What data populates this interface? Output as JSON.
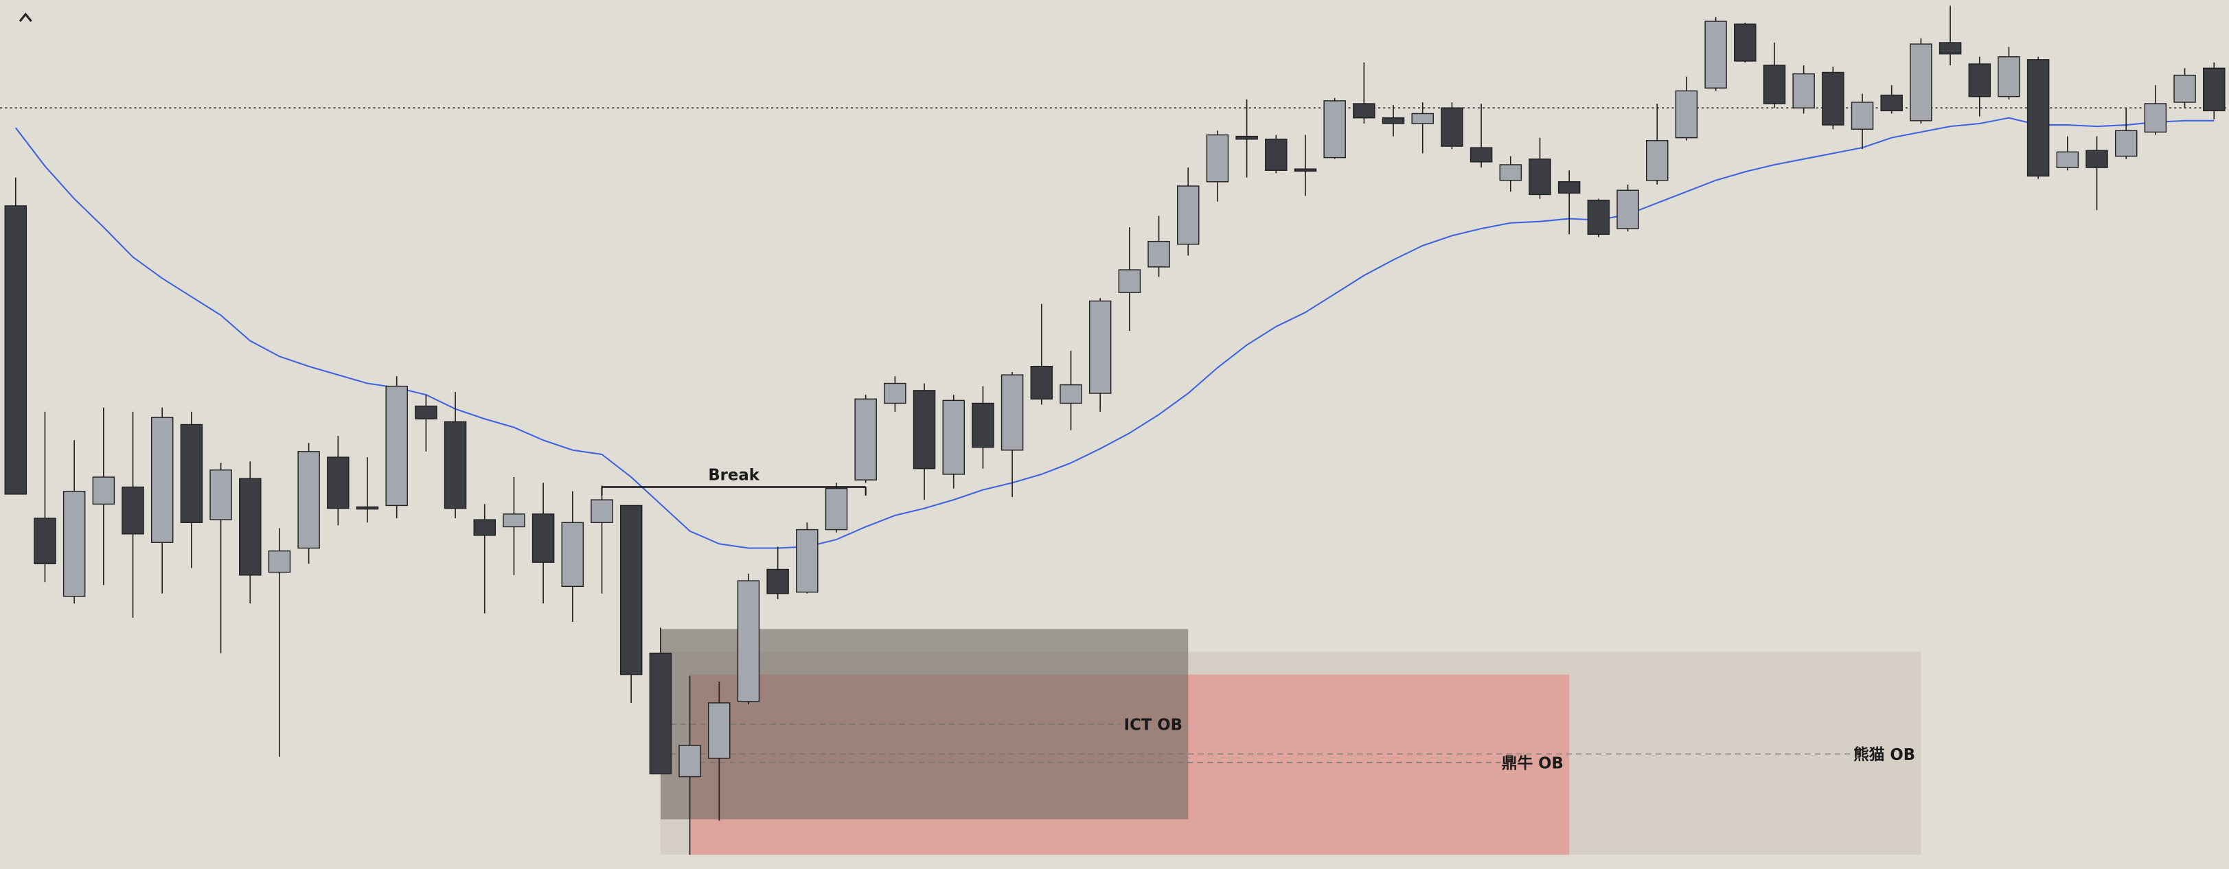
{
  "chart_data": {
    "type": "candlestick",
    "ylim": [
      0,
      612
    ],
    "up_color": "#a4a8ae",
    "down_color": "#3b3d42",
    "open": [
      467,
      247,
      192,
      257,
      269,
      230,
      313,
      246,
      275,
      209,
      226,
      290,
      255,
      256,
      326,
      315,
      246,
      241,
      250,
      199,
      244,
      256,
      152,
      65,
      78,
      118,
      211,
      195,
      239,
      274,
      328,
      337,
      278,
      328,
      295,
      354,
      328,
      335,
      406,
      424,
      440,
      484,
      516,
      514,
      493,
      501,
      539,
      529,
      525,
      536,
      508,
      485,
      500,
      484,
      471,
      451,
      485,
      515,
      550,
      595,
      566,
      536,
      561,
      521,
      545,
      527,
      582,
      567,
      544,
      570,
      494,
      506,
      502,
      519,
      540,
      564
    ],
    "high": [
      487,
      322,
      302,
      325,
      322,
      325,
      322,
      286,
      287,
      240,
      300,
      305,
      290,
      347,
      334,
      336,
      257,
      276,
      272,
      266,
      270,
      256,
      170,
      136,
      132,
      208,
      227,
      244,
      272,
      334,
      347,
      342,
      334,
      340,
      350,
      398,
      365,
      402,
      452,
      460,
      494,
      520,
      542,
      517,
      517,
      543,
      568,
      538,
      540,
      540,
      539,
      502,
      515,
      492,
      472,
      482,
      539,
      558,
      600,
      596,
      582,
      566,
      565,
      546,
      552,
      585,
      608,
      572,
      579,
      572,
      516,
      516,
      536,
      552,
      564,
      568
    ],
    "low": [
      264,
      202,
      187,
      200,
      177,
      194,
      212,
      152,
      187,
      79,
      215,
      242,
      244,
      247,
      294,
      247,
      180,
      207,
      187,
      174,
      194,
      117,
      67,
      10,
      34,
      116,
      190,
      194,
      237,
      272,
      322,
      260,
      268,
      282,
      262,
      327,
      309,
      322,
      379,
      417,
      432,
      470,
      487,
      490,
      474,
      500,
      525,
      516,
      504,
      507,
      494,
      477,
      472,
      447,
      445,
      449,
      482,
      513,
      548,
      568,
      536,
      532,
      521,
      507,
      532,
      525,
      566,
      530,
      542,
      486,
      492,
      464,
      500,
      517,
      536,
      528
    ],
    "close": [
      264,
      215,
      266,
      276,
      236,
      318,
      244,
      281,
      207,
      224,
      294,
      254,
      254,
      340,
      317,
      254,
      235,
      250,
      216,
      244,
      260,
      137,
      67,
      87,
      117,
      203,
      194,
      239,
      268,
      331,
      342,
      282,
      330,
      297,
      348,
      331,
      341,
      400,
      422,
      442,
      481,
      517,
      514,
      492,
      492,
      541,
      529,
      525,
      532,
      509,
      498,
      496,
      475,
      476,
      447,
      478,
      513,
      548,
      597,
      569,
      539,
      560,
      524,
      540,
      534,
      581,
      574,
      544,
      572,
      488,
      505,
      494,
      520,
      539,
      559,
      534
    ],
    "moving_average": {
      "color": "#3f63e0",
      "values": [
        522,
        495,
        472,
        452,
        431,
        416,
        403,
        390,
        372,
        361,
        354,
        348,
        342,
        339,
        334,
        324,
        317,
        311,
        302,
        295,
        292,
        276,
        257,
        238,
        229,
        226,
        226,
        227,
        232,
        241,
        249,
        254,
        260,
        267,
        272,
        278,
        286,
        296,
        307,
        320,
        335,
        353,
        369,
        382,
        392,
        405,
        418,
        429,
        439,
        446,
        451,
        455,
        456,
        458,
        457,
        461,
        469,
        477,
        485,
        491,
        496,
        500,
        504,
        508,
        515,
        519,
        523,
        525,
        529,
        524,
        524,
        523,
        524,
        526,
        527,
        527
      ]
    },
    "price_line": 536,
    "break": {
      "label": "Break",
      "start": 20,
      "end": 29,
      "value": 269
    },
    "zones": [
      {
        "label": "熊猫 OB",
        "start": 22,
        "end": 65,
        "top": 153,
        "bottom": 10,
        "level": 81,
        "color": "#d5cdc4",
        "opacity": 0.9
      },
      {
        "label": "鼎牛 OB",
        "start": 23,
        "end": 53,
        "top": 137,
        "bottom": 10,
        "level": 75,
        "color": "#e39692",
        "opacity": 0.75
      },
      {
        "label": "ICT OB",
        "start": 22,
        "end": 40,
        "top": 169,
        "bottom": 35,
        "level": 102,
        "color": "#6f6b64",
        "opacity": 0.6
      }
    ]
  }
}
